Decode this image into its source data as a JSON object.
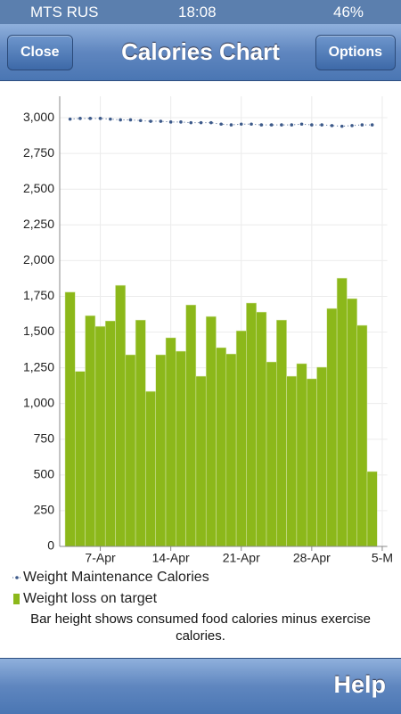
{
  "status_bar": {
    "carrier": "MTS RUS",
    "time": "18:08",
    "battery": "46%"
  },
  "nav_bar": {
    "left_button": "Close",
    "title": "Calories Chart",
    "right_button": "Options"
  },
  "chart_data": {
    "type": "bar",
    "categories": [
      null,
      null,
      null,
      "7-Apr",
      null,
      null,
      null,
      null,
      null,
      null,
      "14-Apr",
      null,
      null,
      null,
      null,
      null,
      null,
      "21-Apr",
      null,
      null,
      null,
      null,
      null,
      null,
      "28-Apr",
      null,
      null,
      null,
      null,
      null,
      null,
      "5-M"
    ],
    "series": [
      {
        "name": "Weight Maintenance Calories",
        "type": "line",
        "color": "#3d5a8a",
        "values": [
          2990,
          2995,
          2995,
          2995,
          2990,
          2985,
          2985,
          2980,
          2975,
          2975,
          2970,
          2970,
          2965,
          2965,
          2965,
          2955,
          2950,
          2955,
          2955,
          2950,
          2950,
          2950,
          2950,
          2955,
          2950,
          2950,
          2945,
          2940,
          2945,
          2950,
          2950,
          null
        ]
      },
      {
        "name": "Weight loss on target",
        "type": "bar",
        "color": "#8cb81a",
        "values": [
          1780,
          1225,
          1615,
          1540,
          1578,
          1827,
          1341,
          1584,
          1085,
          1341,
          1460,
          1366,
          1690,
          1191,
          1609,
          1391,
          1347,
          1509,
          1703,
          1640,
          1291,
          1584,
          1191,
          1279,
          1173,
          1254,
          1665,
          1877,
          1734,
          1547,
          524,
          null
        ]
      }
    ],
    "ylim": [
      0,
      3150
    ],
    "yticks": [
      0,
      250,
      500,
      750,
      {
        "value": 1000,
        "label": "1,000"
      },
      {
        "value": 1250,
        "label": "1,250"
      },
      {
        "value": 1500,
        "label": "1,500"
      },
      {
        "value": 1750,
        "label": "1,750"
      },
      {
        "value": 2000,
        "label": "2,000"
      },
      {
        "value": 2250,
        "label": "2,250"
      },
      {
        "value": 2500,
        "label": "2,500"
      },
      {
        "value": 2750,
        "label": "2,750"
      },
      {
        "value": 3000,
        "label": "3,000"
      }
    ],
    "grid": true,
    "note": "Bar height shows consumed food calories minus exercise calories."
  },
  "toolbar": {
    "button": "Help"
  }
}
